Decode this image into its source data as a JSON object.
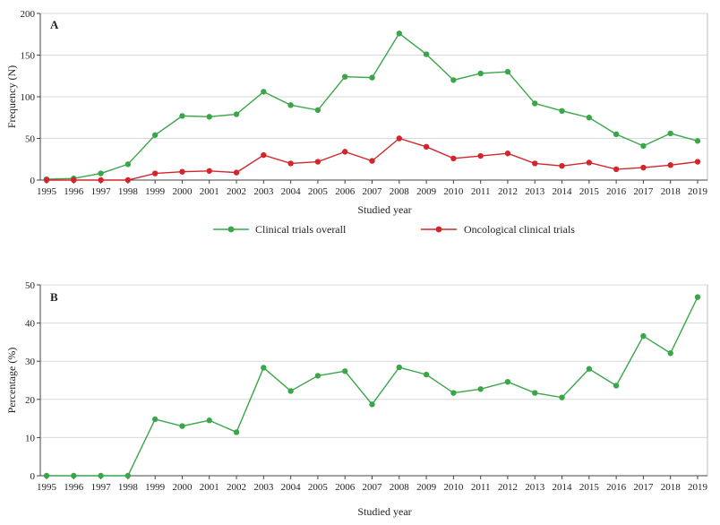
{
  "chart_data": [
    {
      "type": "line",
      "panel_label": "A",
      "xlabel": "Studied year",
      "ylabel": "Frequency (N)",
      "ylim": [
        0,
        200
      ],
      "yticks": [
        0,
        50,
        100,
        150,
        200
      ],
      "grid": "horizontal",
      "legend": "bottom",
      "categories": [
        "1995",
        "1996",
        "1997",
        "1998",
        "1999",
        "2000",
        "2001",
        "2002",
        "2003",
        "2004",
        "2005",
        "2006",
        "2007",
        "2008",
        "2009",
        "2010",
        "2011",
        "2012",
        "2013",
        "2014",
        "2015",
        "2016",
        "2017",
        "2018",
        "2019"
      ],
      "series": [
        {
          "name": "Clinical trials overall",
          "color": "#3aa64a",
          "values": [
            1,
            2,
            8,
            19,
            54,
            77,
            76,
            79,
            106,
            90,
            84,
            124,
            123,
            176,
            151,
            120,
            128,
            130,
            92,
            83,
            75,
            55,
            41,
            56,
            47
          ]
        },
        {
          "name": "Oncological clinical trials",
          "color": "#d3262c",
          "values": [
            0,
            0,
            0,
            0,
            8,
            10,
            11,
            9,
            30,
            20,
            22,
            34,
            23,
            50,
            40,
            26,
            29,
            32,
            20,
            17,
            21,
            13,
            15,
            18,
            22
          ]
        }
      ]
    },
    {
      "type": "line",
      "panel_label": "B",
      "xlabel": "Studied year",
      "ylabel": "Percentage (%)",
      "ylim": [
        0,
        50
      ],
      "yticks": [
        0,
        10,
        20,
        30,
        40,
        50
      ],
      "grid": "horizontal",
      "categories": [
        "1995",
        "1996",
        "1997",
        "1998",
        "1999",
        "2000",
        "2001",
        "2002",
        "2003",
        "2004",
        "2005",
        "2006",
        "2007",
        "2008",
        "2009",
        "2010",
        "2011",
        "2012",
        "2013",
        "2014",
        "2015",
        "2016",
        "2017",
        "2018",
        "2019"
      ],
      "series": [
        {
          "color": "#3aa64a",
          "values": [
            0,
            0,
            0,
            0,
            14.8,
            13.0,
            14.5,
            11.4,
            28.3,
            22.2,
            26.2,
            27.4,
            18.7,
            28.4,
            26.5,
            21.7,
            22.7,
            24.6,
            21.7,
            20.5,
            28.0,
            23.6,
            36.6,
            32.1,
            46.8
          ]
        }
      ]
    }
  ]
}
